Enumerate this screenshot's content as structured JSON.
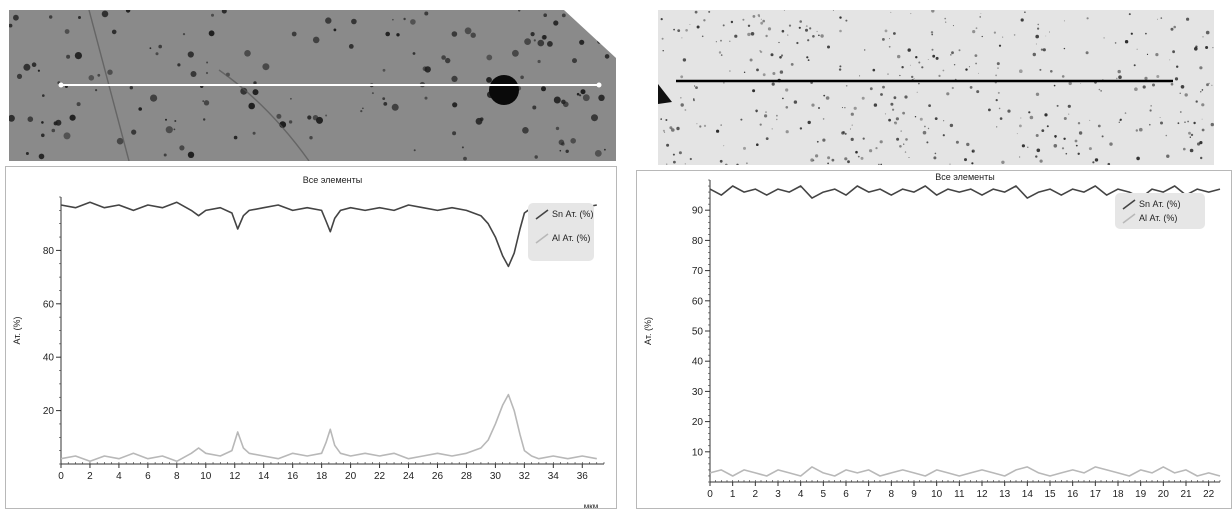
{
  "colors": {
    "sem_left_bg": "#8a8a8a",
    "sem_right_bg": "#e4e4e4",
    "sn_line": "#444444",
    "al_line": "#b8b8b8",
    "axis": "#333333",
    "legend_bg": "#e6e6e6"
  },
  "chart_data": [
    {
      "type": "line",
      "title": "Все элементы",
      "xlabel": "мкм",
      "ylabel": "Ат. (%)",
      "xlim": [
        0,
        37.5
      ],
      "ylim": [
        0,
        100
      ],
      "xticks": [
        "0",
        "2",
        "4",
        "6",
        "8",
        "10",
        "12",
        "14",
        "16",
        "18",
        "20",
        "22",
        "24",
        "26",
        "28",
        "30",
        "32",
        "34",
        "36"
      ],
      "yticks": [
        "20",
        "40",
        "60",
        "80"
      ],
      "legend_position": "top-right",
      "grid": false,
      "series": [
        {
          "name": "Sn Ат. (%)",
          "x": [
            0,
            1,
            2,
            3,
            4,
            5,
            6,
            7,
            8,
            9,
            9.5,
            10,
            11,
            11.8,
            12.2,
            12.6,
            13,
            14,
            15,
            16,
            17,
            18,
            18.3,
            18.6,
            18.9,
            19.3,
            20,
            21,
            22,
            23,
            24,
            25,
            26,
            27,
            28,
            29,
            29.5,
            30,
            30.5,
            30.9,
            31.3,
            31.7,
            32,
            32.5,
            33,
            34,
            35,
            36,
            37
          ],
          "y": [
            97,
            96,
            98,
            96,
            97,
            95,
            97,
            96,
            98,
            95,
            93,
            95,
            96,
            94,
            88,
            93,
            95,
            96,
            97,
            95,
            96,
            95,
            91,
            87,
            92,
            95,
            96,
            95,
            96,
            95,
            97,
            96,
            95,
            96,
            95,
            93,
            90,
            85,
            78,
            74,
            79,
            88,
            94,
            96,
            97,
            96,
            97,
            96,
            97
          ]
        },
        {
          "name": "Al Ат. (%)",
          "x": [
            0,
            1,
            2,
            3,
            4,
            5,
            6,
            7,
            8,
            9,
            9.5,
            10,
            11,
            11.8,
            12.2,
            12.6,
            13,
            14,
            15,
            16,
            17,
            18,
            18.3,
            18.6,
            18.9,
            19.3,
            20,
            21,
            22,
            23,
            24,
            25,
            26,
            27,
            28,
            29,
            29.5,
            30,
            30.5,
            30.9,
            31.3,
            31.7,
            32,
            32.5,
            33,
            34,
            35,
            36,
            37
          ],
          "y": [
            2,
            3,
            1,
            3,
            2,
            4,
            2,
            3,
            1,
            4,
            6,
            4,
            3,
            5,
            12,
            6,
            4,
            3,
            2,
            4,
            3,
            4,
            8,
            13,
            7,
            4,
            3,
            4,
            3,
            4,
            2,
            3,
            4,
            3,
            4,
            6,
            9,
            15,
            22,
            26,
            20,
            11,
            5,
            3,
            2,
            3,
            2,
            3,
            2
          ]
        }
      ]
    },
    {
      "type": "line",
      "title": "Все элементы",
      "xlabel": "",
      "ylabel": "Ат. (%)",
      "xlim": [
        0,
        22.5
      ],
      "ylim": [
        0,
        100
      ],
      "xticks": [
        "0",
        "1",
        "2",
        "3",
        "4",
        "5",
        "6",
        "7",
        "8",
        "9",
        "10",
        "11",
        "12",
        "13",
        "14",
        "15",
        "16",
        "17",
        "18",
        "19",
        "20",
        "21",
        "22"
      ],
      "yticks": [
        "10",
        "20",
        "30",
        "40",
        "50",
        "60",
        "70",
        "80",
        "90"
      ],
      "legend_position": "top-right",
      "grid": false,
      "series": [
        {
          "name": "Sn Ат. (%)",
          "x": [
            0,
            0.5,
            1,
            1.5,
            2,
            2.5,
            3,
            3.5,
            4,
            4.5,
            5,
            5.5,
            6,
            6.5,
            7,
            7.5,
            8,
            8.5,
            9,
            9.5,
            10,
            10.5,
            11,
            11.5,
            12,
            12.5,
            13,
            13.5,
            14,
            14.5,
            15,
            15.5,
            16,
            16.5,
            17,
            17.5,
            18,
            18.5,
            19,
            19.5,
            20,
            20.5,
            21,
            21.5,
            22,
            22.5
          ],
          "y": [
            97,
            95,
            98,
            96,
            97,
            95,
            97,
            96,
            98,
            94,
            96,
            97,
            95,
            98,
            96,
            97,
            95,
            97,
            96,
            98,
            95,
            97,
            96,
            97,
            95,
            97,
            96,
            98,
            94,
            96,
            97,
            95,
            97,
            96,
            98,
            95,
            97,
            96,
            94,
            97,
            96,
            98,
            95,
            97,
            96,
            97
          ]
        },
        {
          "name": "Al Ат. (%)",
          "x": [
            0,
            0.5,
            1,
            1.5,
            2,
            2.5,
            3,
            3.5,
            4,
            4.5,
            5,
            5.5,
            6,
            6.5,
            7,
            7.5,
            8,
            8.5,
            9,
            9.5,
            10,
            10.5,
            11,
            11.5,
            12,
            12.5,
            13,
            13.5,
            14,
            14.5,
            15,
            15.5,
            16,
            16.5,
            17,
            17.5,
            18,
            18.5,
            19,
            19.5,
            20,
            20.5,
            21,
            21.5,
            22,
            22.5
          ],
          "y": [
            3,
            4,
            2,
            4,
            3,
            2,
            4,
            3,
            2,
            5,
            3,
            2,
            4,
            3,
            4,
            2,
            3,
            4,
            3,
            2,
            4,
            3,
            2,
            3,
            4,
            3,
            2,
            4,
            5,
            3,
            2,
            3,
            4,
            3,
            5,
            4,
            3,
            2,
            4,
            3,
            5,
            3,
            4,
            2,
            3,
            2
          ]
        }
      ]
    }
  ]
}
